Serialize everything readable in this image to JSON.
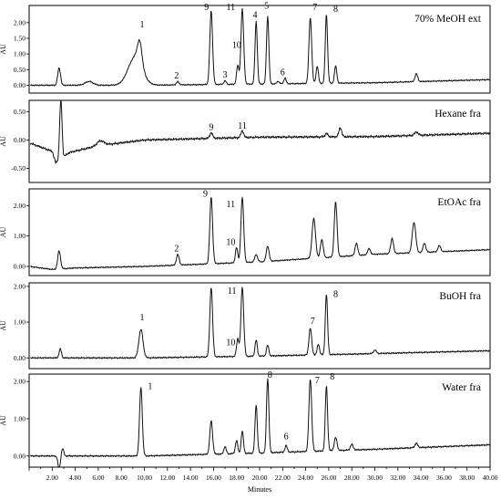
{
  "chart_data": {
    "type": "line",
    "xlabel": "Minutes",
    "x_ticks": [
      "2.00",
      "4.00",
      "6.00",
      "8.00",
      "10.00",
      "12.00",
      "14.00",
      "16.00",
      "18.00",
      "20.00",
      "22.00",
      "24.00",
      "26.00",
      "28.00",
      "30.00",
      "32.00",
      "34.00",
      "36.00",
      "38.00",
      "40.00"
    ],
    "xlim": [
      0,
      40
    ],
    "panels": [
      {
        "title": "70% MeOH ext",
        "ylabel": "AU",
        "y_ticks": [
          "0.00",
          "0.50",
          "1.00",
          "1.50",
          "2.00"
        ],
        "ylim": [
          -0.25,
          2.55
        ],
        "baseline": [
          [
            0,
            0.0
          ],
          [
            10,
            0.0
          ],
          [
            20,
            0.04
          ],
          [
            30,
            0.08
          ],
          [
            40,
            0.18
          ]
        ],
        "peaks": [
          [
            2.6,
            0.55,
            0.12
          ],
          [
            5.2,
            0.12,
            0.35
          ],
          [
            9.2,
            0.9,
            0.6
          ],
          [
            9.6,
            0.7,
            0.2
          ],
          [
            12.9,
            0.1,
            0.12
          ],
          [
            15.8,
            2.35,
            0.12
          ],
          [
            17.0,
            0.12,
            0.1
          ],
          [
            18.1,
            0.6,
            0.1
          ],
          [
            18.5,
            2.4,
            0.12
          ],
          [
            19.7,
            2.0,
            0.1
          ],
          [
            20.7,
            2.15,
            0.1
          ],
          [
            21.6,
            0.08,
            0.1
          ],
          [
            22.2,
            0.18,
            0.1
          ],
          [
            24.4,
            2.1,
            0.12
          ],
          [
            25.0,
            0.55,
            0.1
          ],
          [
            25.8,
            2.2,
            0.1
          ],
          [
            26.6,
            0.55,
            0.1
          ],
          [
            33.6,
            0.25,
            0.12
          ]
        ],
        "labels": [
          {
            "text": "1",
            "x": 9.8,
            "y": 1.85
          },
          {
            "text": "2",
            "x": 12.8,
            "y": 0.22
          },
          {
            "text": "9",
            "x": 15.4,
            "y": 2.4
          },
          {
            "text": "3",
            "x": 17.0,
            "y": 0.25
          },
          {
            "text": "10",
            "x": 18.0,
            "y": 1.2
          },
          {
            "text": "11",
            "x": 17.5,
            "y": 2.4
          },
          {
            "text": "4",
            "x": 19.6,
            "y": 2.15
          },
          {
            "text": "5",
            "x": 20.6,
            "y": 2.45
          },
          {
            "text": "6",
            "x": 22.0,
            "y": 0.32
          },
          {
            "text": "7",
            "x": 24.8,
            "y": 2.4
          },
          {
            "text": "8",
            "x": 26.6,
            "y": 2.35
          }
        ]
      },
      {
        "title": "Hexane fra",
        "ylabel": "AU",
        "y_ticks": [
          "-0.50",
          "0.00",
          "0.50"
        ],
        "ylim": [
          -0.75,
          0.7
        ],
        "baseline": [
          [
            0,
            -0.05
          ],
          [
            2.0,
            -0.2
          ],
          [
            2.3,
            -0.4
          ],
          [
            3.5,
            -0.22
          ],
          [
            6,
            -0.1
          ],
          [
            10,
            0.0
          ],
          [
            20,
            0.05
          ],
          [
            30,
            0.06
          ],
          [
            40,
            0.12
          ]
        ],
        "peaks": [
          [
            2.75,
            1.05,
            0.1
          ],
          [
            6.2,
            0.08,
            0.3
          ],
          [
            15.8,
            0.1,
            0.12
          ],
          [
            18.5,
            0.12,
            0.12
          ],
          [
            25.8,
            0.06,
            0.12
          ],
          [
            27.0,
            0.16,
            0.12
          ],
          [
            33.6,
            0.06,
            0.15
          ]
        ],
        "labels": [
          {
            "text": "9",
            "x": 15.8,
            "y": 0.18
          },
          {
            "text": "11",
            "x": 18.5,
            "y": 0.2
          }
        ]
      },
      {
        "title": "EtOAc fra",
        "ylabel": "AU",
        "y_ticks": [
          "0.00",
          "1.00",
          "2.00"
        ],
        "ylim": [
          -0.3,
          2.55
        ],
        "baseline": [
          [
            0,
            0.0
          ],
          [
            2.0,
            -0.1
          ],
          [
            4,
            -0.05
          ],
          [
            10,
            0.0
          ],
          [
            20,
            0.15
          ],
          [
            26,
            0.3
          ],
          [
            30,
            0.4
          ],
          [
            40,
            0.55
          ]
        ],
        "peaks": [
          [
            2.6,
            0.6,
            0.12
          ],
          [
            12.9,
            0.35,
            0.12
          ],
          [
            15.8,
            2.2,
            0.12
          ],
          [
            18.0,
            0.5,
            0.1
          ],
          [
            18.5,
            2.15,
            0.12
          ],
          [
            19.7,
            0.25,
            0.12
          ],
          [
            20.7,
            0.5,
            0.12
          ],
          [
            24.7,
            1.3,
            0.15
          ],
          [
            25.4,
            0.6,
            0.12
          ],
          [
            26.6,
            1.8,
            0.12
          ],
          [
            28.4,
            0.4,
            0.12
          ],
          [
            29.5,
            0.2,
            0.12
          ],
          [
            31.5,
            0.5,
            0.12
          ],
          [
            33.4,
            1.0,
            0.15
          ],
          [
            34.3,
            0.3,
            0.12
          ],
          [
            35.6,
            0.2,
            0.12
          ]
        ],
        "labels": [
          {
            "text": "2",
            "x": 12.8,
            "y": 0.5
          },
          {
            "text": "9",
            "x": 15.3,
            "y": 2.3
          },
          {
            "text": "10",
            "x": 17.5,
            "y": 0.7
          },
          {
            "text": "11",
            "x": 17.5,
            "y": 1.95
          }
        ]
      },
      {
        "title": "BuOH fra",
        "ylabel": "AU",
        "y_ticks": [
          "0.00",
          "1.00",
          "2.00"
        ],
        "ylim": [
          -0.3,
          2.1
        ],
        "baseline": [
          [
            0,
            0.0
          ],
          [
            10,
            0.0
          ],
          [
            20,
            0.05
          ],
          [
            30,
            0.12
          ],
          [
            40,
            0.2
          ]
        ],
        "peaks": [
          [
            2.7,
            0.25,
            0.1
          ],
          [
            9.7,
            0.8,
            0.18
          ],
          [
            15.8,
            1.95,
            0.12
          ],
          [
            18.1,
            0.5,
            0.1
          ],
          [
            18.5,
            1.95,
            0.12
          ],
          [
            19.7,
            0.45,
            0.1
          ],
          [
            20.7,
            0.3,
            0.1
          ],
          [
            24.4,
            0.75,
            0.12
          ],
          [
            25.1,
            0.3,
            0.1
          ],
          [
            25.8,
            1.7,
            0.1
          ],
          [
            30.0,
            0.1,
            0.12
          ]
        ],
        "labels": [
          {
            "text": "1",
            "x": 9.8,
            "y": 1.05
          },
          {
            "text": "11",
            "x": 17.6,
            "y": 1.8
          },
          {
            "text": "10",
            "x": 17.5,
            "y": 0.35
          },
          {
            "text": "7",
            "x": 24.6,
            "y": 0.95
          },
          {
            "text": "8",
            "x": 26.6,
            "y": 1.7
          }
        ]
      },
      {
        "title": "Water fra",
        "ylabel": "AU",
        "y_ticks": [
          "0.00",
          "1.00",
          "2.00"
        ],
        "ylim": [
          -0.3,
          2.2
        ],
        "baseline": [
          [
            0,
            0.0
          ],
          [
            10,
            0.0
          ],
          [
            20,
            0.08
          ],
          [
            30,
            0.18
          ],
          [
            40,
            0.3
          ]
        ],
        "peaks": [
          [
            2.6,
            -0.35,
            0.1
          ],
          [
            2.9,
            0.2,
            0.1
          ],
          [
            9.7,
            1.85,
            0.12
          ],
          [
            15.8,
            0.9,
            0.12
          ],
          [
            17.0,
            0.2,
            0.1
          ],
          [
            18.0,
            0.35,
            0.1
          ],
          [
            18.5,
            0.6,
            0.1
          ],
          [
            19.7,
            1.3,
            0.1
          ],
          [
            20.7,
            2.0,
            0.1
          ],
          [
            22.3,
            0.18,
            0.1
          ],
          [
            24.4,
            1.95,
            0.12
          ],
          [
            25.8,
            1.75,
            0.1
          ],
          [
            26.6,
            0.35,
            0.12
          ],
          [
            28.0,
            0.15,
            0.12
          ],
          [
            33.6,
            0.12,
            0.12
          ]
        ],
        "labels": [
          {
            "text": "1",
            "x": 10.5,
            "y": 1.8
          },
          {
            "text": "8",
            "x": 20.9,
            "y": 2.1
          },
          {
            "text": "6",
            "x": 22.3,
            "y": 0.45
          },
          {
            "text": "7",
            "x": 25.0,
            "y": 1.95
          },
          {
            "text": "8",
            "x": 26.3,
            "y": 2.05
          }
        ]
      }
    ]
  }
}
